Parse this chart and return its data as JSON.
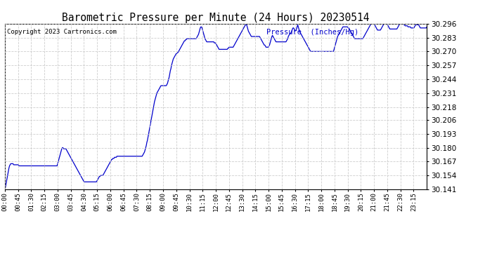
{
  "title": "Barometric Pressure per Minute (24 Hours) 20230514",
  "copyright": "Copyright 2023 Cartronics.com",
  "legend_label": "Pressure  (Inches/Hg)",
  "line_color": "#0000cc",
  "background_color": "#ffffff",
  "grid_color": "#c8c8c8",
  "y_ticks": [
    30.141,
    30.154,
    30.167,
    30.18,
    30.193,
    30.206,
    30.218,
    30.231,
    30.244,
    30.257,
    30.27,
    30.283,
    30.296
  ],
  "ylim": [
    30.141,
    30.296
  ],
  "x_tick_labels": [
    "00:00",
    "00:45",
    "01:30",
    "02:15",
    "03:00",
    "03:45",
    "04:30",
    "05:15",
    "06:00",
    "06:45",
    "07:30",
    "08:15",
    "09:00",
    "09:45",
    "10:30",
    "11:15",
    "12:00",
    "12:45",
    "13:30",
    "14:15",
    "15:00",
    "15:45",
    "16:30",
    "17:15",
    "18:00",
    "18:45",
    "19:30",
    "20:15",
    "21:00",
    "21:45",
    "22:30",
    "23:15"
  ],
  "pressure_data": [
    30.141,
    30.143,
    30.146,
    30.149,
    30.152,
    30.155,
    30.158,
    30.161,
    30.163,
    30.164,
    30.165,
    30.165,
    30.165,
    30.165,
    30.165,
    30.164,
    30.164,
    30.164,
    30.164,
    30.164,
    30.164,
    30.164,
    30.164,
    30.164,
    30.163,
    30.163,
    30.163,
    30.163,
    30.163,
    30.163,
    30.163,
    30.163,
    30.163,
    30.163,
    30.163,
    30.163,
    30.163,
    30.163,
    30.163,
    30.163,
    30.163,
    30.163,
    30.163,
    30.163,
    30.163,
    30.163,
    30.163,
    30.163,
    30.163,
    30.163,
    30.163,
    30.163,
    30.163,
    30.163,
    30.163,
    30.163,
    30.163,
    30.163,
    30.163,
    30.163,
    30.163,
    30.163,
    30.163,
    30.163,
    30.163,
    30.163,
    30.163,
    30.163,
    30.163,
    30.163,
    30.163,
    30.163,
    30.163,
    30.163,
    30.163,
    30.163,
    30.163,
    30.163,
    30.163,
    30.163,
    30.163,
    30.163,
    30.163,
    30.163,
    30.163,
    30.163,
    30.163,
    30.163,
    30.163,
    30.163,
    30.165,
    30.167,
    30.169,
    30.171,
    30.173,
    30.175,
    30.177,
    30.179,
    30.18,
    30.18,
    30.179,
    30.179,
    30.179,
    30.179,
    30.179,
    30.178,
    30.177,
    30.176,
    30.175,
    30.174,
    30.173,
    30.172,
    30.171,
    30.17,
    30.169,
    30.168,
    30.167,
    30.166,
    30.165,
    30.164,
    30.163,
    30.162,
    30.161,
    30.16,
    30.159,
    30.158,
    30.157,
    30.156,
    30.155,
    30.154,
    30.153,
    30.152,
    30.151,
    30.15,
    30.149,
    30.148,
    30.148,
    30.148,
    30.148,
    30.148,
    30.148,
    30.148,
    30.148,
    30.148,
    30.148,
    30.148,
    30.148,
    30.148,
    30.148,
    30.148,
    30.148,
    30.148,
    30.148,
    30.148,
    30.148,
    30.148,
    30.148,
    30.149,
    30.15,
    30.151,
    30.152,
    30.153,
    30.153,
    30.154,
    30.154,
    30.154,
    30.154,
    30.154,
    30.155,
    30.156,
    30.157,
    30.158,
    30.159,
    30.16,
    30.161,
    30.162,
    30.163,
    30.164,
    30.165,
    30.166,
    30.167,
    30.168,
    30.169,
    30.169,
    30.17,
    30.17,
    30.17,
    30.171,
    30.171,
    30.171,
    30.171,
    30.172,
    30.172,
    30.172,
    30.172,
    30.172,
    30.172,
    30.172,
    30.172,
    30.172,
    30.172,
    30.172,
    30.172,
    30.172,
    30.172,
    30.172,
    30.172,
    30.172,
    30.172,
    30.172,
    30.172,
    30.172,
    30.172,
    30.172,
    30.172,
    30.172,
    30.172,
    30.172,
    30.172,
    30.172,
    30.172,
    30.172,
    30.172,
    30.172,
    30.172,
    30.172,
    30.172,
    30.172,
    30.172,
    30.172,
    30.172,
    30.172,
    30.172,
    30.172,
    30.172,
    30.173,
    30.174,
    30.175,
    30.176,
    30.178,
    30.18,
    30.182,
    30.185,
    30.187,
    30.19,
    30.193,
    30.196,
    30.199,
    30.202,
    30.205,
    30.208,
    30.211,
    30.214,
    30.217,
    30.22,
    30.223,
    30.225,
    30.227,
    30.229,
    30.231,
    30.232,
    30.233,
    30.234,
    30.235,
    30.236,
    30.237,
    30.238,
    30.238,
    30.238,
    30.238,
    30.238,
    30.238,
    30.238,
    30.238,
    30.238,
    30.238,
    30.239,
    30.24,
    30.242,
    30.244,
    30.246,
    30.249,
    30.252,
    30.254,
    30.257,
    30.259,
    30.261,
    30.263,
    30.264,
    30.265,
    30.266,
    30.267,
    30.268,
    30.268,
    30.269,
    30.269,
    30.27,
    30.271,
    30.272,
    30.273,
    30.274,
    30.275,
    30.276,
    30.277,
    30.278,
    30.279,
    30.28,
    30.28,
    30.281,
    30.281,
    30.282,
    30.282,
    30.282,
    30.282,
    30.282,
    30.282,
    30.282,
    30.282,
    30.282,
    30.282,
    30.282,
    30.282,
    30.282,
    30.282,
    30.282,
    30.282,
    30.282,
    30.283,
    30.284,
    30.285,
    30.286,
    30.288,
    30.29,
    30.292,
    30.293,
    30.293,
    30.292,
    30.29,
    30.288,
    30.286,
    30.284,
    30.282,
    30.281,
    30.28,
    30.279,
    30.279,
    30.279,
    30.279,
    30.279,
    30.279,
    30.279,
    30.279,
    30.279,
    30.279,
    30.279,
    30.279,
    30.279,
    30.278,
    30.278,
    30.278,
    30.277,
    30.276,
    30.275,
    30.274,
    30.273,
    30.272,
    30.272,
    30.272,
    30.272,
    30.272,
    30.272,
    30.272,
    30.272,
    30.272,
    30.272,
    30.272,
    30.272,
    30.272,
    30.272,
    30.272,
    30.273,
    30.273,
    30.274,
    30.274,
    30.274,
    30.274,
    30.274,
    30.274,
    30.274,
    30.274,
    30.275,
    30.276,
    30.277,
    30.278,
    30.279,
    30.28,
    30.281,
    30.282,
    30.283,
    30.284,
    30.285,
    30.286,
    30.287,
    30.288,
    30.289,
    30.29,
    30.291,
    30.292,
    30.293,
    30.294,
    30.295,
    30.295,
    30.295,
    30.293,
    30.291,
    30.289,
    30.288,
    30.287,
    30.286,
    30.285,
    30.284,
    30.284,
    30.284,
    30.284,
    30.284,
    30.284,
    30.284,
    30.284,
    30.284,
    30.284,
    30.284,
    30.284,
    30.284,
    30.284,
    30.284,
    30.283,
    30.282,
    30.281,
    30.28,
    30.279,
    30.278,
    30.277,
    30.276,
    30.276,
    30.275,
    30.274,
    30.274,
    30.274,
    30.274,
    30.274,
    30.275,
    30.276,
    30.278,
    30.28,
    30.282,
    30.284,
    30.285,
    30.284,
    30.283,
    30.282,
    30.281,
    30.28,
    30.279,
    30.279,
    30.279,
    30.279,
    30.279,
    30.279,
    30.279,
    30.279,
    30.279,
    30.279,
    30.279,
    30.279,
    30.279,
    30.279,
    30.279,
    30.279,
    30.279,
    30.279,
    30.28,
    30.281,
    30.282,
    30.284,
    30.285,
    30.286,
    30.287,
    30.287,
    30.288,
    30.289,
    30.291,
    30.292,
    30.292,
    30.291,
    30.29,
    30.289,
    30.29,
    30.291,
    30.293,
    30.295,
    30.293,
    30.291,
    30.289,
    30.288,
    30.287,
    30.286,
    30.285,
    30.284,
    30.283,
    30.282,
    30.281,
    30.28,
    30.279,
    30.278,
    30.277,
    30.276,
    30.275,
    30.274,
    30.273,
    30.272,
    30.271,
    30.27,
    30.27,
    30.27,
    30.27,
    30.27,
    30.27,
    30.27,
    30.27,
    30.27,
    30.27,
    30.27,
    30.27,
    30.27,
    30.27,
    30.27,
    30.27,
    30.27,
    30.27,
    30.27,
    30.27,
    30.27,
    30.27,
    30.27,
    30.27,
    30.27,
    30.27,
    30.27,
    30.27,
    30.27,
    30.27,
    30.27,
    30.27,
    30.27,
    30.27,
    30.27,
    30.27,
    30.27,
    30.27,
    30.27,
    30.27,
    30.272,
    30.274,
    30.276,
    30.278,
    30.28,
    30.282,
    30.284,
    30.285,
    30.286,
    30.287,
    30.288,
    30.289,
    30.29,
    30.291,
    30.292,
    30.293,
    30.293,
    30.293,
    30.293,
    30.293,
    30.293,
    30.293,
    30.293,
    30.293,
    30.292,
    30.292,
    30.291,
    30.29,
    30.289,
    30.288,
    30.287,
    30.286,
    30.285,
    30.284,
    30.283,
    30.282,
    30.282,
    30.282,
    30.282,
    30.282,
    30.282,
    30.282,
    30.282,
    30.282,
    30.282,
    30.282,
    30.282,
    30.282,
    30.282,
    30.282,
    30.283,
    30.284,
    30.285,
    30.286,
    30.287,
    30.288,
    30.289,
    30.29,
    30.291,
    30.292,
    30.293,
    30.294,
    30.295,
    30.296,
    30.296,
    30.296,
    30.296,
    30.296,
    30.296,
    30.295,
    30.294,
    30.293,
    30.292,
    30.291,
    30.29,
    30.29,
    30.29,
    30.29,
    30.29,
    30.29,
    30.291,
    30.292,
    30.293,
    30.294,
    30.295,
    30.296,
    30.296,
    30.296,
    30.296,
    30.296,
    30.296,
    30.295,
    30.294,
    30.293,
    30.292,
    30.291,
    30.291,
    30.291,
    30.291,
    30.291,
    30.291,
    30.291,
    30.291,
    30.291,
    30.291,
    30.291,
    30.291,
    30.291,
    30.292,
    30.293,
    30.294,
    30.295,
    30.296,
    30.296,
    30.296,
    30.296,
    30.296,
    30.296,
    30.296,
    30.295,
    30.295,
    30.294,
    30.294,
    30.294,
    30.294,
    30.294,
    30.293,
    30.293,
    30.293,
    30.293,
    30.293,
    30.292,
    30.292,
    30.292,
    30.292,
    30.292,
    30.292,
    30.293,
    30.294,
    30.295,
    30.295,
    30.295,
    30.295,
    30.295,
    30.295,
    30.294,
    30.293,
    30.292,
    30.292,
    30.292,
    30.292,
    30.292,
    30.292,
    30.292,
    30.292,
    30.292,
    30.292,
    30.292,
    30.293
  ]
}
